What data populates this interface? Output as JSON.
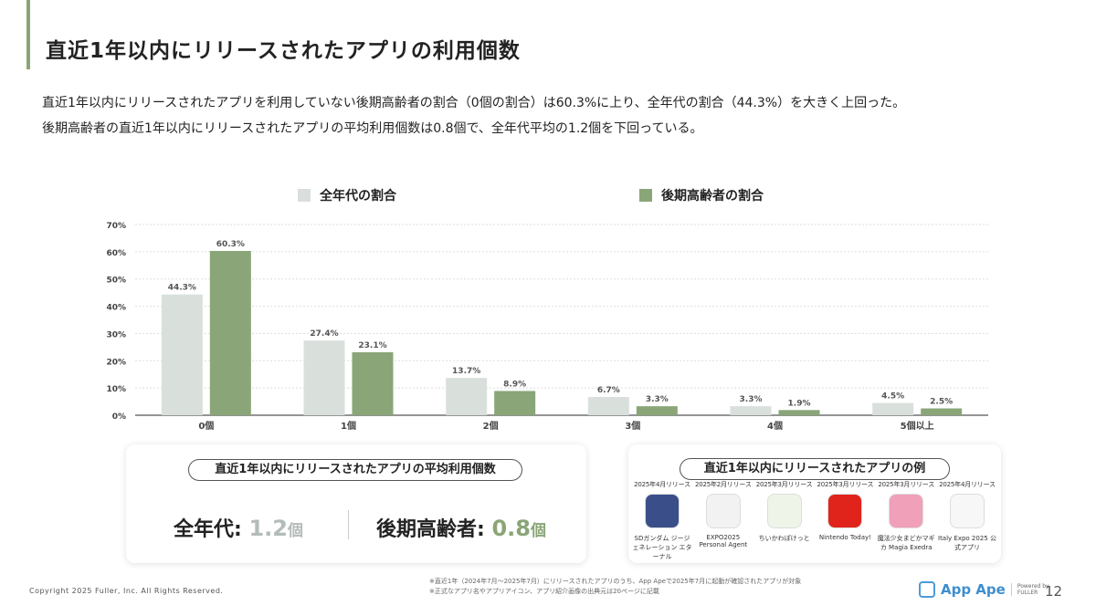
{
  "header": {
    "title": "直近1年以内にリリースされたアプリの利用個数"
  },
  "description": [
    "直近1年以内にリリースされたアプリを利用していない後期高齢者の割合（0個の割合）は60.3%に上り、全年代の割合（44.3%）を大きく上回った。",
    "後期高齢者の直近1年以内にリリースされたアプリの平均利用個数は0.8個で、全年代平均の1.2個を下回っている。"
  ],
  "chart_data": {
    "type": "bar",
    "categories": [
      "0個",
      "1個",
      "2個",
      "3個",
      "4個",
      "5個以上"
    ],
    "series": [
      {
        "name": "全年代の割合",
        "color": "#d9e0dc",
        "values": [
          44.3,
          27.4,
          13.7,
          6.7,
          3.3,
          4.5
        ],
        "labels": [
          "44.3%",
          "27.4%",
          "13.7%",
          "6.7%",
          "3.3%",
          "4.5%"
        ]
      },
      {
        "name": "後期高齢者の割合",
        "color": "#8aa577",
        "values": [
          60.3,
          23.1,
          8.9,
          3.3,
          1.9,
          2.5
        ],
        "labels": [
          "60.3%",
          "23.1%",
          "8.9%",
          "3.3%",
          "1.9%",
          "2.5%"
        ]
      }
    ],
    "ylim": [
      0,
      70
    ],
    "yticks": [
      "0%",
      "10%",
      "20%",
      "30%",
      "40%",
      "50%",
      "60%",
      "70%"
    ],
    "grid": true,
    "legend": "top"
  },
  "avg_card": {
    "title": "直近1年以内にリリースされたアプリの平均利用個数",
    "all_label": "全年代:",
    "all_value": "1.2",
    "elder_label": "後期高齢者:",
    "elder_value": "0.8",
    "unit": "個"
  },
  "apps_card": {
    "title": "直近1年以内にリリースされたアプリの例",
    "apps": [
      {
        "release": "2025年4月リリース",
        "name": "SDガンダム ジージェネレーション エターナル",
        "color": "#3a4f8a"
      },
      {
        "release": "2025年2月リリース",
        "name": "EXPO2025 Personal Agent",
        "color": "#f2f2f2"
      },
      {
        "release": "2025年3月リリース",
        "name": "ちいかわぽけっと",
        "color": "#eef5e8"
      },
      {
        "release": "2025年3月リリース",
        "name": "Nintendo Today!",
        "color": "#e0241b"
      },
      {
        "release": "2025年3月リリース",
        "name": "魔法少女まどかマギカ Magia Exedra",
        "color": "#f0a0b8"
      },
      {
        "release": "2025年4月リリース",
        "name": "Italy Expo 2025 公式アプリ",
        "color": "#f7f7f7"
      }
    ]
  },
  "footer": {
    "copyright": "Copyright 2025 Fuller, Inc. All Rights Reserved.",
    "notes": [
      "※直近1年（2024年7月～2025年7月）にリリースされたアプリのうち、App Apeで2025年7月に起動が確認されたアプリが対象",
      "※正式なアプリ名やアプリアイコン、アプリ紹介画像の出典元は20ページに記載"
    ],
    "logo": "App Ape",
    "powered": "Powered by FULLER",
    "page": "12"
  }
}
